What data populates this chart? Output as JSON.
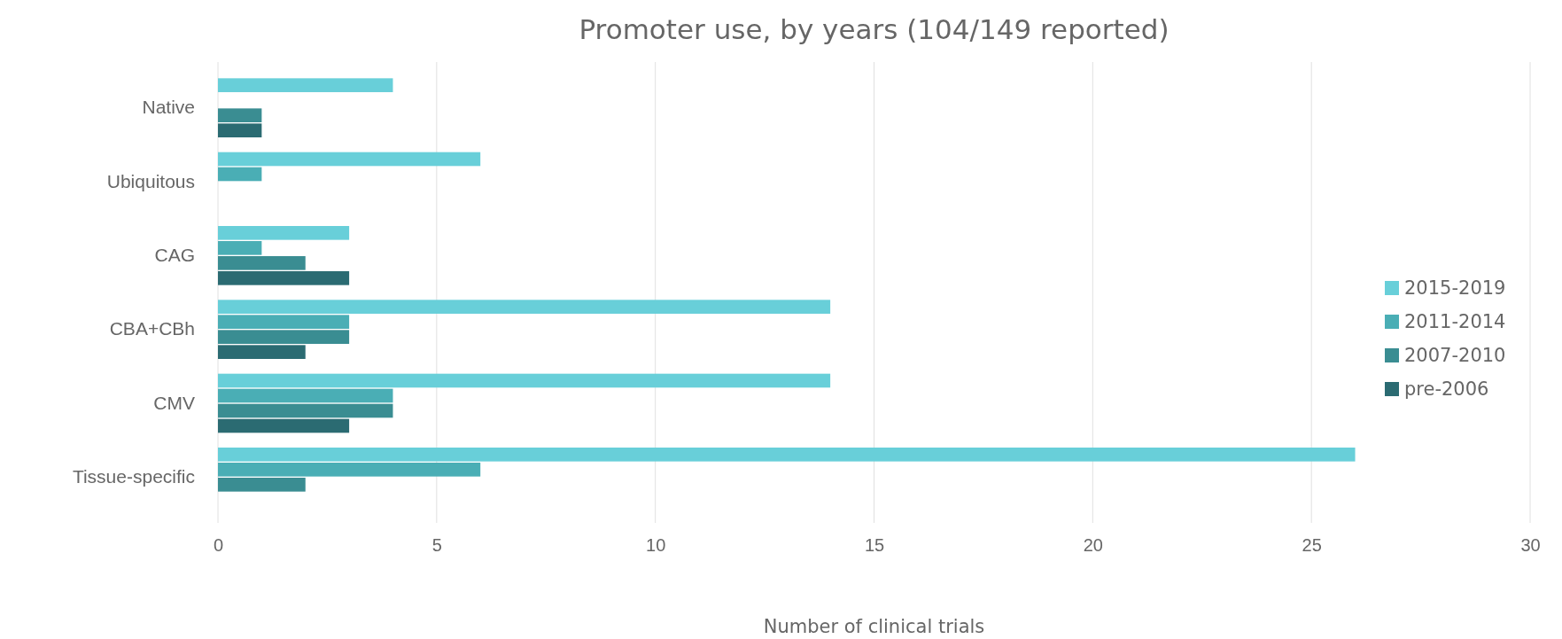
{
  "chart_data": {
    "type": "bar",
    "orientation": "horizontal",
    "title": "Promoter use, by years (104/149 reported)",
    "xlabel": "Number of clinical trials",
    "categories": [
      "Native",
      "Ubiquitous",
      "CAG",
      "CBA+CBh",
      "CMV",
      "Tissue-specific"
    ],
    "series": [
      {
        "name": "2015-2019",
        "color": "#68cfd9",
        "values": [
          4,
          6,
          3,
          14,
          14,
          26
        ]
      },
      {
        "name": "2011-2014",
        "color": "#4aaeb5",
        "values": [
          0,
          1,
          1,
          3,
          4,
          6
        ]
      },
      {
        "name": "2007-2010",
        "color": "#3a8d92",
        "values": [
          1,
          0,
          2,
          3,
          4,
          2
        ]
      },
      {
        "name": "pre-2006",
        "color": "#2b6b72",
        "values": [
          1,
          0,
          3,
          2,
          3,
          0
        ]
      }
    ],
    "xlim": [
      0,
      30
    ],
    "xticks": [
      0,
      5,
      10,
      15,
      20,
      25,
      30
    ],
    "grid": "x",
    "legend": "right"
  }
}
